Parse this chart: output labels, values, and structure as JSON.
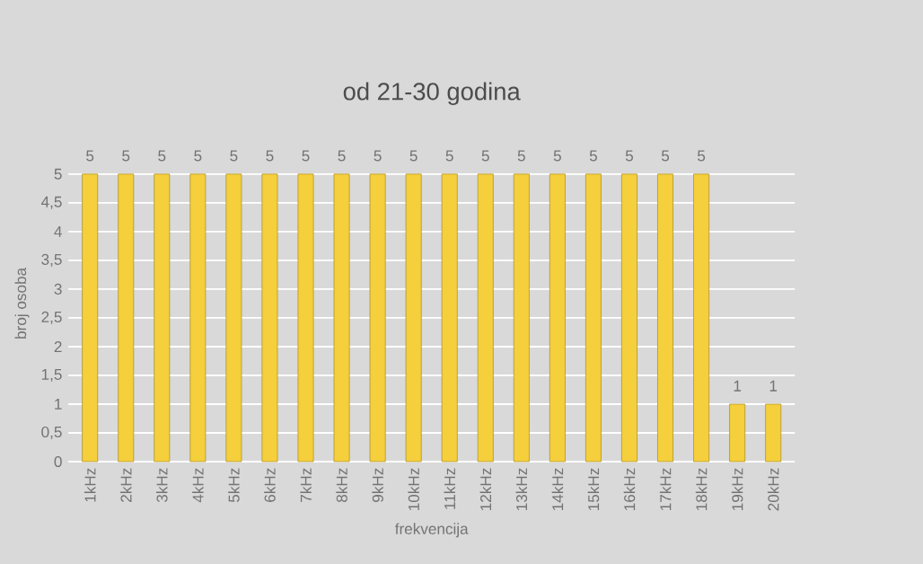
{
  "chart_data": {
    "type": "bar",
    "title": "od 21-30 godina",
    "xlabel": "frekvencija",
    "ylabel": "broj osoba",
    "categories": [
      "1kHz",
      "2kHz",
      "3kHz",
      "4kHz",
      "5kHz",
      "6kHz",
      "7kHz",
      "8kHz",
      "9kHz",
      "10kHz",
      "11kHz",
      "12kHz",
      "13kHz",
      "14kHz",
      "15kHz",
      "16kHz",
      "17kHz",
      "18kHz",
      "19kHz",
      "20kHz"
    ],
    "values": [
      5,
      5,
      5,
      5,
      5,
      5,
      5,
      5,
      5,
      5,
      5,
      5,
      5,
      5,
      5,
      5,
      5,
      5,
      1,
      1
    ],
    "color": "#f5cf3c",
    "ylim": [
      0,
      5
    ],
    "yticks": [
      0,
      {
        "value": 0.5,
        "label": "0,5"
      },
      1,
      {
        "value": 1.5,
        "label": "1,5"
      },
      2,
      {
        "value": 2.5,
        "label": "2,5"
      },
      3,
      {
        "value": 3.5,
        "label": "3,5"
      },
      4,
      {
        "value": 4.5,
        "label": "4,5"
      },
      5
    ],
    "grid": "y",
    "data_labels": true
  }
}
